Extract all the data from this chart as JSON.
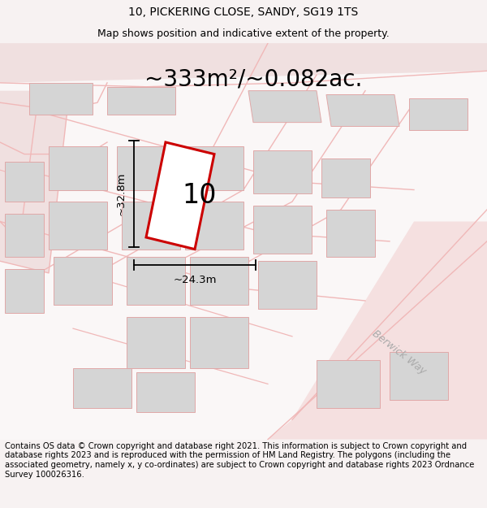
{
  "title_line1": "10, PICKERING CLOSE, SANDY, SG19 1TS",
  "title_line2": "Map shows position and indicative extent of the property.",
  "area_label": "~333m²/~0.082ac.",
  "number_label": "10",
  "dim_height": "~32.8m",
  "dim_width": "~24.3m",
  "berwick_label": "Berwick Way",
  "footer_text": "Contains OS data © Crown copyright and database right 2021. This information is subject to Crown copyright and database rights 2023 and is reproduced with the permission of HM Land Registry. The polygons (including the associated geometry, namely x, y co-ordinates) are subject to Crown copyright and database rights 2023 Ordnance Survey 100026316.",
  "bg_color": "#f7f2f2",
  "map_bg": "#ffffff",
  "plot_outline_color": "#cc0000",
  "road_color": "#f0b8b8",
  "block_color": "#d5d5d5",
  "block_edge_color": "#e0a8a8",
  "title_fontsize": 10,
  "area_fontsize": 20,
  "number_fontsize": 24,
  "dim_fontsize": 9.5,
  "footer_fontsize": 7.2,
  "berwick_fontsize": 9
}
